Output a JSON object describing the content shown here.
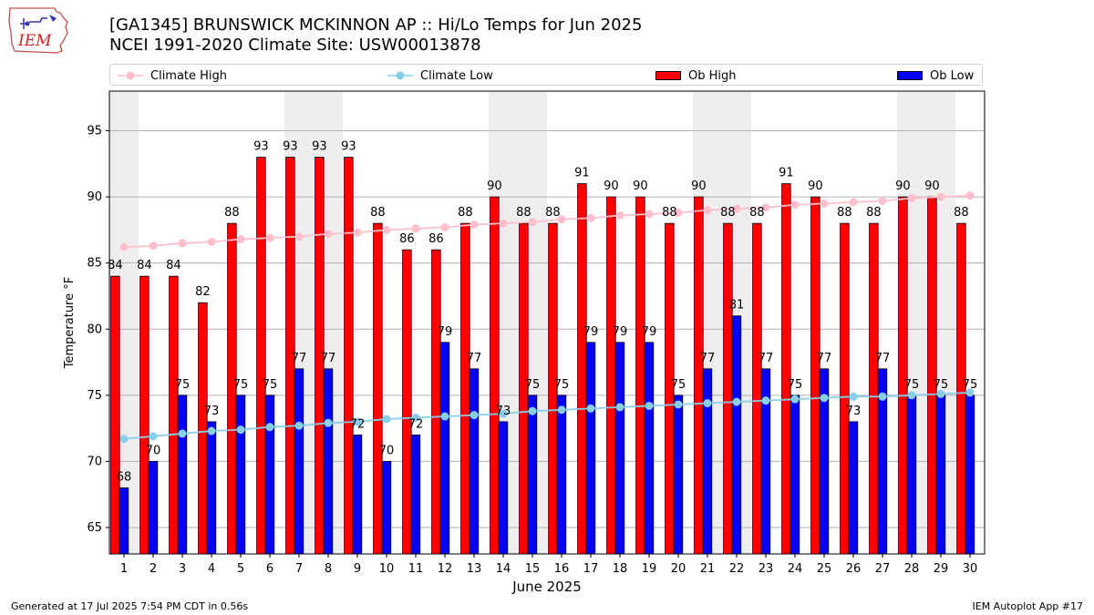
{
  "header": {
    "title_line1": "[GA1345] BRUNSWICK MCKINNON AP :: Hi/Lo Temps for Jun 2025",
    "title_line2": "NCEI 1991-2020 Climate Site: USW00013878",
    "logo_text": "IEM"
  },
  "footer": {
    "generated": "Generated at 17 Jul 2025 7:54 PM CDT in 0.56s",
    "app": "IEM Autoplot App #17"
  },
  "legend": {
    "climate_high": "Climate High",
    "climate_low": "Climate Low",
    "ob_high": "Ob High",
    "ob_low": "Ob Low"
  },
  "colors": {
    "ob_high": "#ff0000",
    "ob_low": "#0000ff",
    "climate_high": "#ffc0cb",
    "climate_low": "#87ceeb",
    "weekend_shade": "#eeeeee",
    "grid": "#b0b0b0"
  },
  "chart_data": {
    "type": "bar",
    "xlabel": "June 2025",
    "ylabel": "Temperature °F",
    "ylim": [
      63,
      98
    ],
    "yticks": [
      65,
      70,
      75,
      80,
      85,
      90,
      95
    ],
    "grid": "horizontal",
    "legend_position": "top",
    "categories": [
      "1",
      "2",
      "3",
      "4",
      "5",
      "6",
      "7",
      "8",
      "9",
      "10",
      "11",
      "12",
      "13",
      "14",
      "15",
      "16",
      "17",
      "18",
      "19",
      "20",
      "21",
      "22",
      "23",
      "24",
      "25",
      "26",
      "27",
      "28",
      "29",
      "30"
    ],
    "shaded_days": [
      "1",
      "7",
      "8",
      "14",
      "15",
      "21",
      "22",
      "28",
      "29"
    ],
    "series": [
      {
        "name": "Ob High",
        "kind": "bar",
        "values": [
          84,
          84,
          84,
          82,
          88,
          93,
          93,
          93,
          93,
          88,
          86,
          86,
          88,
          90,
          88,
          88,
          91,
          90,
          90,
          88,
          90,
          88,
          88,
          91,
          90,
          88,
          88,
          90,
          90,
          88
        ]
      },
      {
        "name": "Ob Low",
        "kind": "bar",
        "values": [
          68,
          70,
          75,
          73,
          75,
          75,
          77,
          77,
          72,
          70,
          72,
          79,
          77,
          73,
          75,
          75,
          79,
          79,
          79,
          75,
          77,
          81,
          77,
          75,
          77,
          73,
          77,
          75,
          75,
          75
        ]
      },
      {
        "name": "Climate High",
        "kind": "line",
        "values": [
          86.2,
          86.3,
          86.5,
          86.6,
          86.8,
          86.9,
          87.0,
          87.2,
          87.3,
          87.5,
          87.6,
          87.7,
          87.9,
          88.0,
          88.1,
          88.3,
          88.4,
          88.6,
          88.7,
          88.8,
          89.0,
          89.1,
          89.2,
          89.4,
          89.5,
          89.6,
          89.7,
          89.9,
          90.0,
          90.1
        ]
      },
      {
        "name": "Climate Low",
        "kind": "line",
        "values": [
          71.7,
          71.9,
          72.1,
          72.3,
          72.4,
          72.6,
          72.7,
          72.9,
          73.0,
          73.2,
          73.3,
          73.4,
          73.5,
          73.6,
          73.8,
          73.9,
          74.0,
          74.1,
          74.2,
          74.3,
          74.4,
          74.5,
          74.6,
          74.7,
          74.8,
          74.9,
          74.9,
          75.0,
          75.1,
          75.2
        ]
      }
    ]
  }
}
